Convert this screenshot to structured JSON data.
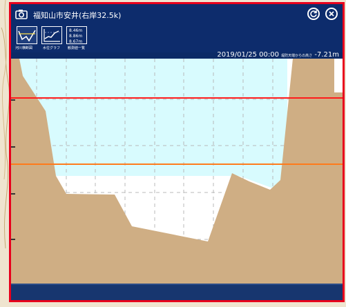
{
  "window": {
    "title": "福知山市安井(右岸32.5k)"
  },
  "toolbar": {
    "tabs": [
      {
        "label": "河川横断図",
        "icon": "cross-section-icon",
        "active": true
      },
      {
        "label": "水位グラフ",
        "icon": "graph-icon",
        "active": false
      },
      {
        "label": "観測値一覧",
        "icon": "table-icon",
        "active": false
      }
    ],
    "levels": [
      "8.46m",
      "8.86m",
      "8.67m"
    ]
  },
  "status": {
    "datetime": "2019/01/25 00:00",
    "caption": "堤防天端からの高さ",
    "level": "-7.21m"
  },
  "colors": {
    "frame": "#e8001c",
    "header": "#0d2c6c",
    "ground": "#cfae84",
    "water": "#d8fbfe",
    "red_line": "#ff1a1a",
    "orange_line": "#ff7a1a"
  }
}
